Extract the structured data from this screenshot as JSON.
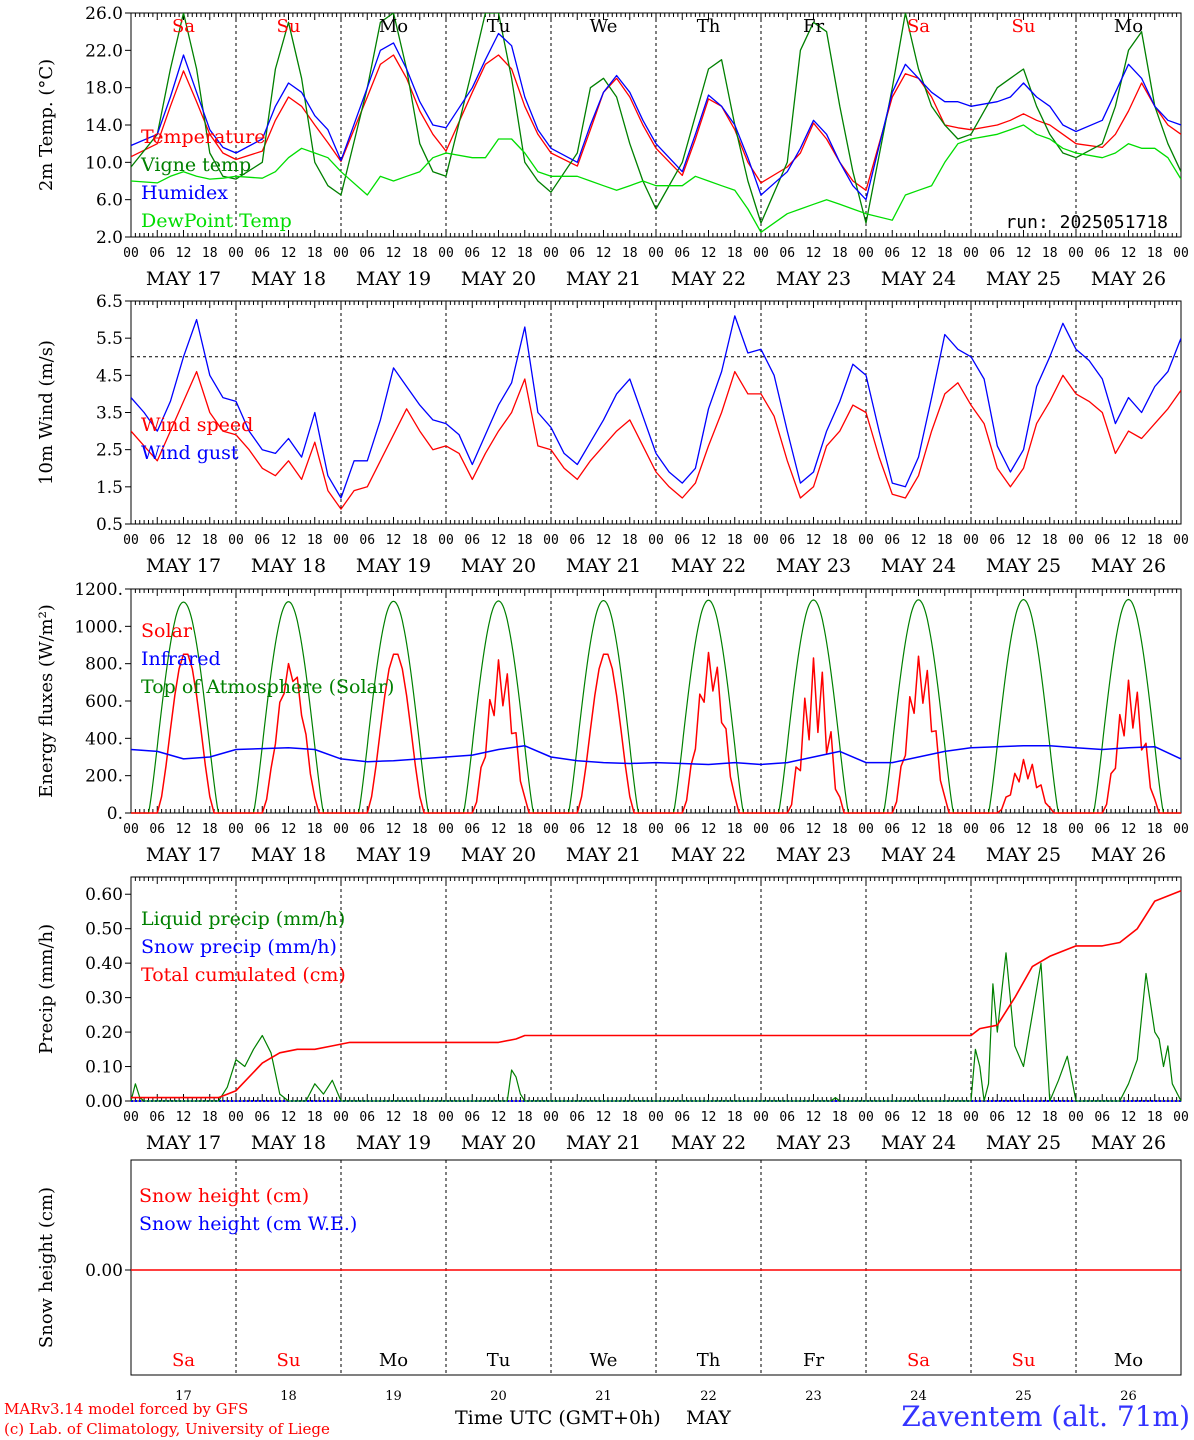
{
  "meteogram": {
    "run_label": "run: 2025051718",
    "location_label": "Zaventem (alt. 71m)",
    "credit_line1": "MARv3.14 model forced by GFS",
    "credit_line2": "(c) Lab. of Climatology, University of Liege",
    "x_axis_title": "Time UTC (GMT+0h)",
    "month_label": "MAY",
    "hour_ticks": [
      "00",
      "06",
      "12",
      "18"
    ],
    "days": [
      "MAY 17",
      "MAY 18",
      "MAY 19",
      "MAY 20",
      "MAY 21",
      "MAY 22",
      "MAY 23",
      "MAY 24",
      "MAY 25",
      "MAY 26"
    ],
    "day_numbers": [
      "17",
      "18",
      "19",
      "20",
      "21",
      "22",
      "23",
      "24",
      "25",
      "26"
    ],
    "weekdays": [
      "Sa",
      "Su",
      "Mo",
      "Tu",
      "We",
      "Th",
      "Fr",
      "Sa",
      "Su",
      "Mo"
    ],
    "weekend_color": "#ff0000",
    "weekday_color": "#000000"
  },
  "chart_data": [
    {
      "type": "line",
      "id": "temperature",
      "ylabel": "2m Temp. (°C)",
      "ylim": [
        2,
        26
      ],
      "yticks": [
        "2.0",
        "6.0",
        "10.0",
        "14.0",
        "18.0",
        "22.0",
        "26.0"
      ],
      "ytick_values": [
        2,
        6,
        10,
        14,
        18,
        22,
        26
      ],
      "legend_placement": "top-left",
      "x_hours_from_may17_00": [
        0,
        6,
        9,
        12,
        15,
        18,
        21,
        24,
        30,
        33,
        36,
        39,
        42,
        45,
        48,
        54,
        57,
        60,
        63,
        66,
        69,
        72,
        78,
        81,
        84,
        87,
        90,
        93,
        96,
        102,
        105,
        108,
        111,
        114,
        117,
        120,
        126,
        129,
        132,
        135,
        138,
        141,
        144,
        150,
        153,
        156,
        159,
        162,
        165,
        168,
        174,
        177,
        180,
        183,
        186,
        189,
        192,
        198,
        201,
        204,
        207,
        210,
        213,
        216,
        222,
        225,
        228,
        231,
        234,
        237,
        240
      ],
      "series": [
        {
          "name": "Temperature",
          "color": "#ff0000",
          "values": [
            10.6,
            12.0,
            16.0,
            19.8,
            16.5,
            13.0,
            11.0,
            10.3,
            11.2,
            14.5,
            17.0,
            16.0,
            14.0,
            12.1,
            10.1,
            17.0,
            20.5,
            21.5,
            19.0,
            15.5,
            13.0,
            11.2,
            17.5,
            20.5,
            21.5,
            20.0,
            16.0,
            13.0,
            11.0,
            9.6,
            13.5,
            17.5,
            19.0,
            17.0,
            14.0,
            11.5,
            8.6,
            12.5,
            16.8,
            16.0,
            13.5,
            10.0,
            7.8,
            9.5,
            11.0,
            14.2,
            12.5,
            10.0,
            8.0,
            7.0,
            17.0,
            19.5,
            19.0,
            17.0,
            14.0,
            13.7,
            13.5,
            14.0,
            14.5,
            15.2,
            14.5,
            14.0,
            13.0,
            12.0,
            11.6,
            13.0,
            15.5,
            18.5,
            16.0,
            14.0,
            13.0
          ]
        },
        {
          "name": "Vigne temp",
          "color": "#008000",
          "values": [
            9.5,
            13.0,
            20.0,
            26.0,
            20.0,
            11.0,
            8.5,
            8.2,
            10.0,
            20.0,
            25.0,
            19.0,
            10.0,
            7.5,
            6.5,
            18.0,
            25.0,
            26.0,
            20.0,
            12.0,
            9.0,
            8.5,
            20.0,
            26.0,
            26.0,
            19.0,
            10.0,
            8.0,
            6.8,
            11.0,
            18.0,
            19.0,
            17.0,
            12.0,
            8.0,
            5.0,
            10.0,
            15.0,
            20.0,
            21.0,
            14.0,
            8.0,
            3.5,
            10.0,
            22.0,
            25.0,
            24.0,
            16.0,
            9.0,
            3.5,
            18.0,
            26.0,
            20.0,
            16.0,
            14.0,
            12.5,
            13.0,
            18.0,
            19.0,
            20.0,
            16.0,
            13.0,
            11.0,
            10.5,
            12.0,
            16.0,
            22.0,
            24.0,
            16.0,
            12.0,
            9.0
          ]
        },
        {
          "name": "Humidex",
          "color": "#0000ff",
          "values": [
            11.8,
            13.0,
            17.0,
            21.5,
            17.5,
            13.5,
            11.6,
            11.0,
            12.5,
            16.0,
            18.5,
            17.5,
            15.0,
            13.5,
            10.2,
            18.0,
            22.0,
            22.8,
            20.0,
            16.5,
            14.0,
            13.7,
            18.0,
            21.0,
            23.8,
            22.5,
            17.0,
            13.5,
            11.5,
            10.0,
            14.0,
            17.5,
            19.3,
            17.5,
            14.5,
            12.0,
            9.0,
            13.0,
            17.2,
            16.0,
            14.0,
            10.5,
            6.5,
            9.0,
            11.5,
            14.5,
            13.0,
            10.0,
            7.5,
            6.0,
            17.5,
            20.5,
            19.0,
            17.5,
            16.5,
            16.5,
            16.0,
            16.5,
            17.0,
            18.5,
            17.0,
            16.0,
            14.0,
            13.3,
            14.5,
            17.5,
            20.5,
            19.0,
            16.0,
            14.5,
            14.0
          ]
        },
        {
          "name": "DewPoint Temp",
          "color": "#00dd00",
          "values": [
            8.0,
            7.8,
            8.5,
            9.0,
            8.5,
            8.2,
            8.3,
            8.5,
            8.3,
            9.0,
            10.5,
            11.5,
            11.0,
            10.5,
            9.0,
            6.5,
            8.5,
            8.0,
            8.5,
            9.0,
            10.5,
            11.0,
            10.5,
            10.5,
            12.5,
            12.5,
            11.0,
            9.0,
            8.5,
            8.5,
            8.0,
            7.5,
            7.0,
            7.5,
            8.0,
            7.5,
            7.5,
            8.5,
            8.0,
            7.5,
            7.0,
            5.0,
            2.5,
            4.5,
            5.0,
            5.5,
            6.0,
            5.5,
            5.0,
            4.5,
            3.8,
            6.5,
            7.0,
            7.5,
            10.0,
            12.0,
            12.5,
            13.0,
            13.5,
            14.0,
            13.0,
            12.5,
            11.5,
            11.0,
            10.5,
            11.0,
            12.0,
            11.5,
            11.5,
            10.5,
            8.2
          ]
        }
      ]
    },
    {
      "type": "line",
      "id": "wind",
      "ylabel": "10m Wind (m/s)",
      "ylim": [
        0.5,
        6.5
      ],
      "yticks": [
        "0.5",
        "1.5",
        "2.5",
        "3.5",
        "4.5",
        "5.5",
        "6.5"
      ],
      "ytick_values": [
        0.5,
        1.5,
        2.5,
        3.5,
        4.5,
        5.5,
        6.5
      ],
      "reference_line": 5.0,
      "legend_placement": "top-left",
      "x_hours_from_may17_00": [
        0,
        3,
        6,
        9,
        12,
        15,
        18,
        21,
        24,
        27,
        30,
        33,
        36,
        39,
        42,
        45,
        48,
        51,
        54,
        57,
        60,
        63,
        66,
        69,
        72,
        75,
        78,
        81,
        84,
        87,
        90,
        93,
        96,
        99,
        102,
        105,
        108,
        111,
        114,
        117,
        120,
        123,
        126,
        129,
        132,
        135,
        138,
        141,
        144,
        147,
        150,
        153,
        156,
        159,
        162,
        165,
        168,
        171,
        174,
        177,
        180,
        183,
        186,
        189,
        192,
        195,
        198,
        201,
        204,
        207,
        210,
        213,
        216,
        219,
        222,
        225,
        228,
        231,
        234,
        237,
        240
      ],
      "series": [
        {
          "name": "Wind speed",
          "color": "#ff0000",
          "values": [
            3.0,
            2.6,
            2.2,
            3.0,
            3.8,
            4.6,
            3.5,
            3.0,
            2.9,
            2.5,
            2.0,
            1.8,
            2.2,
            1.7,
            2.7,
            1.4,
            0.9,
            1.4,
            1.5,
            2.2,
            2.9,
            3.6,
            3.0,
            2.5,
            2.6,
            2.4,
            1.7,
            2.4,
            3.0,
            3.5,
            4.4,
            2.6,
            2.5,
            2.0,
            1.7,
            2.2,
            2.6,
            3.0,
            3.3,
            2.6,
            1.9,
            1.5,
            1.2,
            1.6,
            2.6,
            3.5,
            4.6,
            4.0,
            4.0,
            3.4,
            2.2,
            1.2,
            1.5,
            2.6,
            3.0,
            3.7,
            3.5,
            2.3,
            1.3,
            1.2,
            1.8,
            3.0,
            4.0,
            4.3,
            3.7,
            3.2,
            2.0,
            1.5,
            2.0,
            3.2,
            3.8,
            4.5,
            4.0,
            3.8,
            3.5,
            2.4,
            3.0,
            2.8,
            3.2,
            3.6,
            4.1
          ]
        },
        {
          "name": "Wind gust",
          "color": "#0000ff",
          "values": [
            3.9,
            3.5,
            3.0,
            3.8,
            5.0,
            6.0,
            4.5,
            3.9,
            3.8,
            3.0,
            2.5,
            2.4,
            2.8,
            2.3,
            3.5,
            1.8,
            1.2,
            2.2,
            2.2,
            3.3,
            4.7,
            4.2,
            3.7,
            3.3,
            3.2,
            2.9,
            2.1,
            2.9,
            3.7,
            4.3,
            5.8,
            3.5,
            3.1,
            2.4,
            2.1,
            2.7,
            3.3,
            4.0,
            4.4,
            3.4,
            2.4,
            1.9,
            1.6,
            2.0,
            3.6,
            4.6,
            6.1,
            5.1,
            5.2,
            4.5,
            3.0,
            1.6,
            1.9,
            3.0,
            3.8,
            4.8,
            4.5,
            3.0,
            1.6,
            1.5,
            2.3,
            3.9,
            5.6,
            5.2,
            5.0,
            4.4,
            2.6,
            1.9,
            2.5,
            4.2,
            5.0,
            5.9,
            5.2,
            4.9,
            4.4,
            3.2,
            3.9,
            3.5,
            4.2,
            4.6,
            5.5
          ]
        }
      ]
    },
    {
      "type": "line",
      "id": "energy",
      "ylabel": "Energy fluxes (W/m²)",
      "ylim": [
        0,
        1200
      ],
      "yticks": [
        "0.",
        "200.",
        "400.",
        "600.",
        "800.",
        "1000.",
        "1200."
      ],
      "ytick_values": [
        0,
        200,
        400,
        600,
        800,
        1000,
        1200
      ],
      "legend_placement": "top-left",
      "solar_daylight_hours": [
        4,
        20
      ],
      "series": [
        {
          "name": "Solar",
          "color": "#ff0000",
          "daily_peak": [
            860,
            810,
            860,
            830,
            860,
            870,
            840,
            850,
            290,
            720
          ]
        },
        {
          "name": "Infrared",
          "color": "#0000ff",
          "x_hours_from_may17_00": [
            0,
            6,
            12,
            18,
            24,
            30,
            36,
            42,
            48,
            54,
            60,
            66,
            72,
            78,
            84,
            90,
            96,
            102,
            108,
            114,
            120,
            126,
            132,
            138,
            144,
            150,
            156,
            162,
            168,
            174,
            180,
            186,
            192,
            198,
            204,
            210,
            216,
            222,
            228,
            234,
            240
          ],
          "values": [
            340,
            330,
            290,
            300,
            340,
            345,
            350,
            340,
            290,
            275,
            280,
            290,
            300,
            310,
            340,
            360,
            300,
            280,
            270,
            265,
            270,
            265,
            260,
            270,
            260,
            270,
            300,
            330,
            270,
            270,
            300,
            330,
            350,
            355,
            360,
            360,
            350,
            340,
            350,
            355,
            290
          ]
        },
        {
          "name": "Top of Atmosphere (Solar)",
          "color": "#008000",
          "daily_peak": [
            1130,
            1132,
            1134,
            1136,
            1138,
            1140,
            1141,
            1142,
            1143,
            1144
          ]
        }
      ]
    },
    {
      "type": "line",
      "id": "precip",
      "ylabel": "Precip (mm/h)",
      "ylim": [
        0,
        0.65
      ],
      "yticks": [
        "0.00",
        "0.10",
        "0.20",
        "0.30",
        "0.40",
        "0.50",
        "0.60"
      ],
      "ytick_values": [
        0,
        0.1,
        0.2,
        0.3,
        0.4,
        0.5,
        0.6
      ],
      "legend_placement": "top-left",
      "series": [
        {
          "name": "Liquid precip (mm/h)",
          "color": "#008000",
          "x_hours_from_may17_00": [
            0,
            1,
            2,
            3,
            20,
            22,
            24,
            26,
            28,
            30,
            32,
            34,
            36,
            38,
            40,
            42,
            44,
            46,
            48,
            86,
            87,
            88,
            89,
            90,
            160,
            161,
            162,
            192,
            193,
            194,
            195,
            196,
            197,
            198,
            200,
            202,
            204,
            206,
            208,
            210,
            212,
            214,
            216,
            226,
            228,
            230,
            232,
            234,
            235,
            236,
            237,
            238,
            240
          ],
          "values": [
            0,
            0.05,
            0.01,
            0,
            0,
            0.04,
            0.12,
            0.1,
            0.15,
            0.19,
            0.14,
            0.02,
            0,
            0,
            0,
            0.05,
            0.02,
            0.06,
            0,
            0,
            0.09,
            0.07,
            0.02,
            0,
            0,
            0.01,
            0,
            0,
            0.15,
            0.1,
            0,
            0.05,
            0.34,
            0.2,
            0.43,
            0.16,
            0.1,
            0.25,
            0.4,
            0,
            0.06,
            0.13,
            0,
            0,
            0.05,
            0.12,
            0.37,
            0.2,
            0.18,
            0.1,
            0.16,
            0.05,
            0
          ]
        },
        {
          "name": "Snow precip (mm/h)",
          "color": "#0000ff",
          "values": [
            0
          ]
        },
        {
          "name": "Total cumulated (cm)",
          "color": "#ff0000",
          "x_hours_from_may17_00": [
            0,
            2,
            20,
            24,
            30,
            34,
            38,
            42,
            46,
            50,
            84,
            88,
            90,
            96,
            192,
            194,
            198,
            202,
            206,
            210,
            216,
            222,
            226,
            230,
            234,
            240
          ],
          "values": [
            0.01,
            0.01,
            0.01,
            0.03,
            0.11,
            0.14,
            0.15,
            0.15,
            0.16,
            0.17,
            0.17,
            0.18,
            0.19,
            0.19,
            0.19,
            0.21,
            0.22,
            0.3,
            0.39,
            0.42,
            0.45,
            0.45,
            0.46,
            0.5,
            0.58,
            0.61
          ]
        }
      ]
    },
    {
      "type": "line",
      "id": "snow",
      "ylabel": "Snow height (cm)",
      "yticks": [
        "0.00"
      ],
      "ytick_values": [
        0
      ],
      "legend_placement": "top-left",
      "series": [
        {
          "name": "Snow height (cm)",
          "color": "#ff0000",
          "values": [
            0
          ]
        },
        {
          "name": "Snow height (cm W.E.)",
          "color": "#0000ff",
          "values": [
            0
          ]
        }
      ]
    }
  ]
}
